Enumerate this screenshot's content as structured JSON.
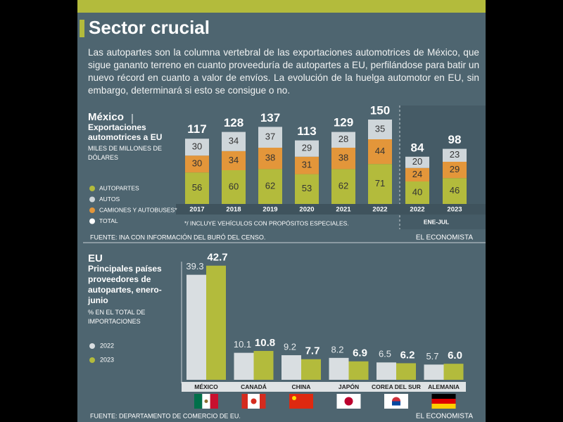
{
  "header": {
    "title": "Sector crucial",
    "text": "Las autopartes son la columna vertebral de las exportaciones automotrices de México, que sigue gananto terreno en cuanto proveeduría de autopartes a EU, perfilándose para batir un nuevo récord en cuanto a valor de envíos. La evolución de la huelga automotor en EU, sin embargo, determinará si esto se consigue o no."
  },
  "chart_data": [
    {
      "type": "stacked_bar",
      "title": "México",
      "subtitle": "Exportaciones automotrices a EU",
      "unit": "MILES DE MILLONES DE DÓLARES",
      "categories": [
        "2017",
        "2018",
        "2019",
        "2020",
        "2021",
        "2022",
        "2022",
        "2023"
      ],
      "group_label": "ENE-JUL",
      "series": [
        {
          "name": "AUTOPARTES",
          "color": "#b3bb3c",
          "values": [
            56,
            60,
            62,
            53,
            62,
            71,
            40,
            46
          ]
        },
        {
          "name": "AUTOS",
          "color": "#cfd6da",
          "values": [
            30,
            34,
            37,
            29,
            28,
            35,
            20,
            23
          ]
        },
        {
          "name": "CAMIONES Y AUTOBUSES*",
          "color": "#e3963a",
          "values": [
            30,
            34,
            38,
            31,
            38,
            44,
            24,
            29
          ]
        }
      ],
      "total": {
        "name": "TOTAL",
        "color": "#ffffff",
        "values": [
          117,
          128,
          137,
          113,
          129,
          150,
          84,
          98
        ]
      },
      "note": "*/ INCLUYE VEHÍCULOS CON PROPÓSITOS ESPECIALES.",
      "source": "FUENTE: INA CON INFORMACIÓN DEL BURÓ DEL CENSO.",
      "brand": "EL ECONOMISTA"
    },
    {
      "type": "grouped_bar",
      "title": "EU",
      "subtitle": "Principales países proveedores de autopartes, enero-junio",
      "unit": "% EN EL TOTAL DE IMPORTACIONES",
      "categories": [
        "MÉXICO",
        "CANADÁ",
        "CHINA",
        "JAPÓN",
        "COREA DEL SUR",
        "ALEMANIA"
      ],
      "series": [
        {
          "name": "2022",
          "color": "#d9dee1",
          "values": [
            39.3,
            10.1,
            9.2,
            8.2,
            6.5,
            5.7
          ]
        },
        {
          "name": "2023",
          "color": "#b3bb3c",
          "values": [
            42.7,
            10.8,
            7.7,
            6.9,
            6.2,
            6.0
          ],
          "value_labels": [
            "42.7",
            "10.8",
            "7.7",
            "6.9",
            "6.2",
            "6.0"
          ]
        }
      ],
      "source": "FUENTE: DEPARTAMENTO DE COMERCIO DE EU.",
      "brand": "EL ECONOMISTA"
    }
  ]
}
